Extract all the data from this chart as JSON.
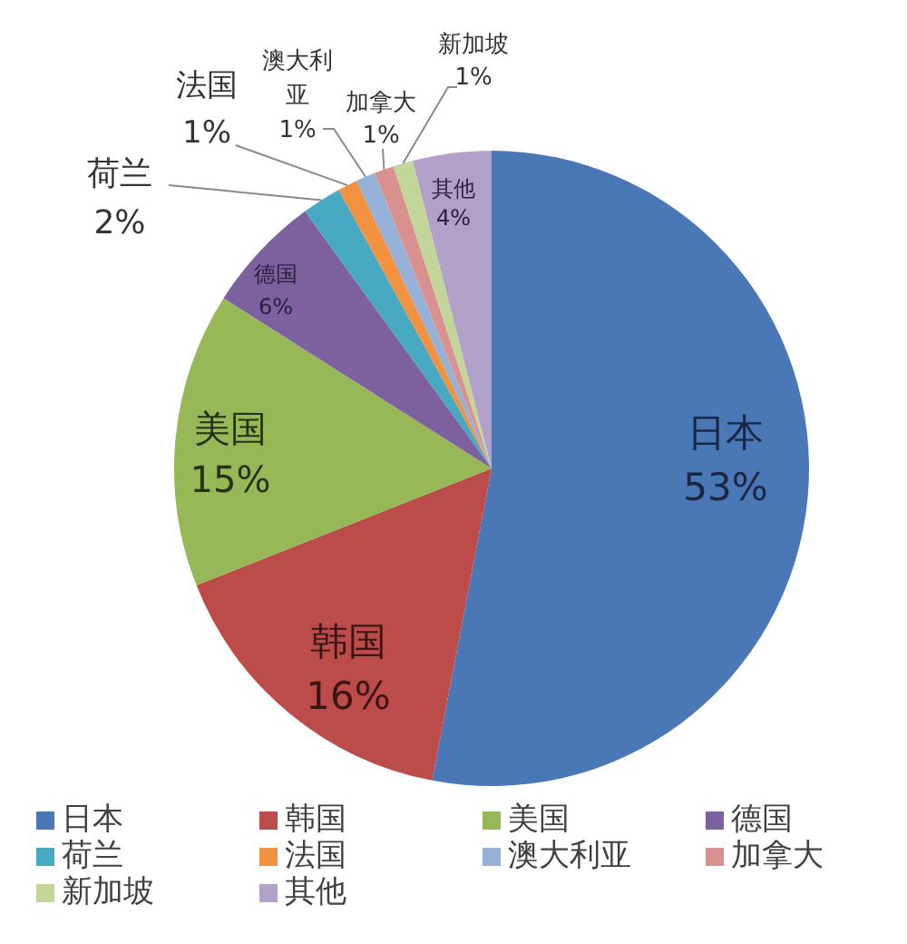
{
  "chart_data": {
    "type": "pie",
    "categories": [
      "日本",
      "韩国",
      "美国",
      "德国",
      "荷兰",
      "法国",
      "澳大利亚",
      "加拿大",
      "新加坡",
      "其他"
    ],
    "values": [
      53,
      16,
      15,
      6,
      2,
      1,
      1,
      1,
      1,
      4
    ],
    "value_labels": [
      "53%",
      "16%",
      "15%",
      "6%",
      "2%",
      "1%",
      "1%",
      "1%",
      "1%",
      "4%"
    ],
    "colors": [
      "#4a78b6",
      "#bc4c49",
      "#97b857",
      "#7d619f",
      "#48a9c2",
      "#f2913f",
      "#95b1d8",
      "#d8918f",
      "#c2d69a",
      "#b1a0c7"
    ],
    "legend": "bottom"
  }
}
